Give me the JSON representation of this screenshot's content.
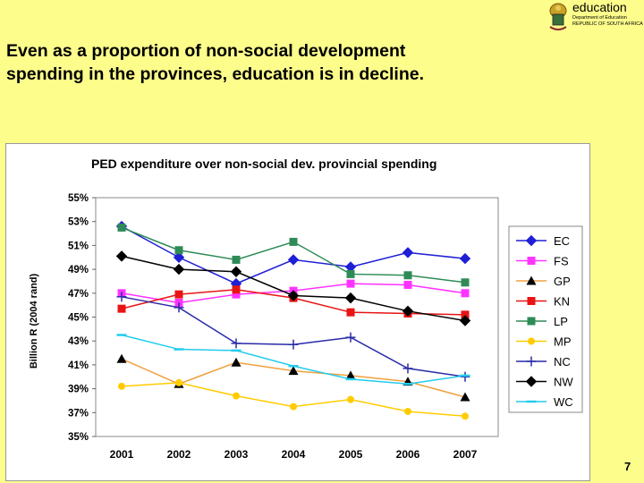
{
  "slide": {
    "title_line1": "Even as a proportion of non-social development",
    "title_line2": "spending in the provinces, education is in decline.",
    "page_number": "7"
  },
  "logo": {
    "word": "education",
    "dept_line1": "Department of Education",
    "dept_line2": "REPUBLIC OF SOUTH AFRICA"
  },
  "chart_data": {
    "type": "line",
    "title": "PED expenditure over non-social dev. provincial spending",
    "xlabel": "",
    "ylabel": "Billion R (2004 rand)",
    "ylim": [
      35,
      55
    ],
    "yticks": [
      "35%",
      "37%",
      "39%",
      "41%",
      "43%",
      "45%",
      "47%",
      "49%",
      "51%",
      "53%",
      "55%"
    ],
    "categories": [
      "2001",
      "2002",
      "2003",
      "2004",
      "2005",
      "2006",
      "2007"
    ],
    "grid": false,
    "legend_position": "right",
    "series": [
      {
        "name": "EC",
        "color": "#1f1fd6",
        "marker": "diamond",
        "values": [
          52.6,
          50.0,
          47.8,
          49.8,
          49.2,
          50.4,
          49.9
        ]
      },
      {
        "name": "FS",
        "color": "#ff33ff",
        "marker": "square",
        "values": [
          47.0,
          46.2,
          46.9,
          47.2,
          47.8,
          47.7,
          47.0
        ]
      },
      {
        "name": "GP",
        "color": "#f0a040",
        "marker": "triangle",
        "values": [
          41.5,
          39.4,
          41.2,
          40.5,
          40.1,
          39.6,
          38.3
        ]
      },
      {
        "name": "KN",
        "color": "#e81414",
        "marker": "square",
        "values": [
          45.7,
          46.9,
          47.3,
          46.6,
          45.4,
          45.3,
          45.2
        ]
      },
      {
        "name": "LP",
        "color": "#2e8b57",
        "marker": "square",
        "values": [
          52.5,
          50.6,
          49.8,
          51.3,
          48.6,
          48.5,
          47.9
        ]
      },
      {
        "name": "MP",
        "color": "#ffcc00",
        "marker": "circle",
        "values": [
          39.2,
          39.5,
          38.4,
          37.5,
          38.1,
          37.1,
          36.7
        ]
      },
      {
        "name": "NC",
        "color": "#2a2aa8",
        "marker": "plus",
        "values": [
          46.7,
          45.8,
          42.8,
          42.7,
          43.3,
          40.7,
          40.0
        ]
      },
      {
        "name": "NW",
        "color": "#000000",
        "marker": "diamond",
        "values": [
          50.1,
          49.0,
          48.8,
          46.8,
          46.6,
          45.5,
          44.7
        ]
      },
      {
        "name": "WC",
        "color": "#22ccee",
        "marker": "dash",
        "values": [
          43.5,
          42.3,
          42.2,
          40.9,
          39.8,
          39.4,
          40.1
        ]
      }
    ]
  }
}
